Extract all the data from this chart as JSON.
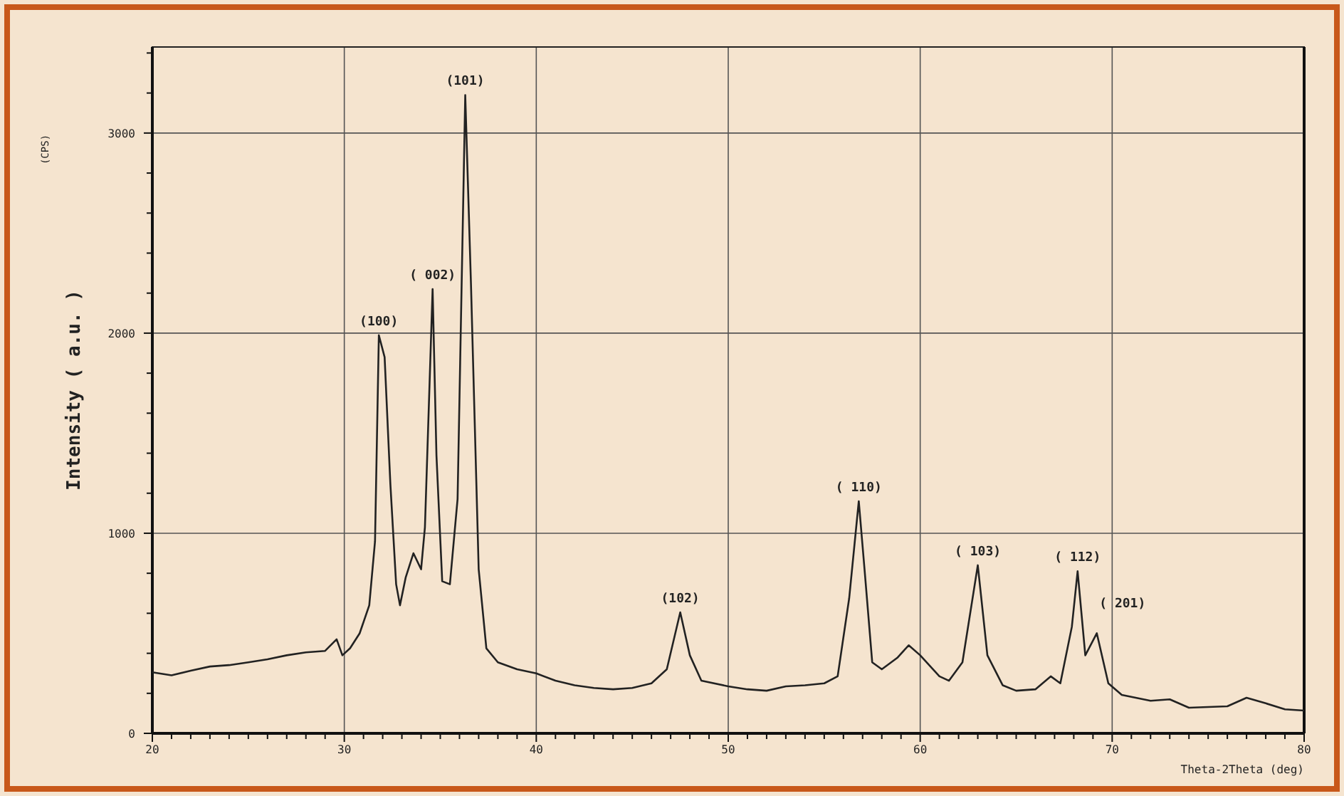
{
  "chart_data": {
    "type": "line",
    "xlabel": "Theta-2Theta (deg)",
    "ylabel": "Intensity ( a.u. )",
    "x": [
      20,
      21,
      22,
      23,
      24,
      25,
      26,
      27,
      28,
      29,
      29.6,
      29.9,
      30.3,
      30.8,
      31.3,
      31.6,
      31.8,
      32.1,
      32.4,
      32.7,
      32.9,
      33.2,
      33.6,
      34.0,
      34.2,
      34.6,
      34.8,
      35.1,
      35.5,
      35.9,
      36.3,
      36.6,
      37.0,
      37.4,
      38,
      39,
      40,
      41,
      42,
      43,
      44,
      45,
      46,
      46.8,
      47.5,
      48.0,
      48.6,
      50,
      51,
      52,
      53,
      54,
      55,
      55.7,
      56.3,
      56.8,
      57.1,
      57.5,
      58,
      58.8,
      59.4,
      60,
      61,
      61.5,
      62.2,
      63.0,
      63.5,
      64.3,
      65,
      66,
      66.8,
      67.3,
      67.9,
      68.2,
      68.6,
      69.2,
      69.8,
      70.5,
      72,
      73,
      74,
      76,
      77,
      78,
      79,
      80
    ],
    "series": [
      {
        "color": "#222222",
        "values": [
          305,
          290,
          313,
          334,
          341,
          355,
          370,
          390,
          405,
          412,
          470,
          390,
          425,
          500,
          640,
          960,
          1990,
          1880,
          1245,
          745,
          640,
          780,
          900,
          820,
          1030,
          2220,
          1390,
          760,
          745,
          1170,
          3190,
          2240,
          820,
          425,
          355,
          320,
          300,
          263,
          240,
          227,
          220,
          227,
          250,
          320,
          605,
          390,
          263,
          235,
          220,
          213,
          235,
          240,
          250,
          285,
          675,
          1160,
          820,
          355,
          320,
          377,
          440,
          390,
          285,
          263,
          355,
          840,
          390,
          240,
          213,
          220,
          285,
          250,
          533,
          810,
          390,
          500,
          250,
          192,
          163,
          170,
          128,
          135,
          178,
          150,
          120,
          114
        ]
      }
    ],
    "xlim": [
      20,
      80
    ],
    "ylim": [
      0,
      3430
    ],
    "xticks": [
      20,
      {
        "value": 21,
        "label": null
      },
      {
        "value": 22,
        "label": null
      },
      {
        "value": 23,
        "label": null
      },
      {
        "value": 24,
        "label": null
      },
      {
        "value": 25,
        "label": null
      },
      {
        "value": 26,
        "label": null
      },
      {
        "value": 27,
        "label": null
      },
      {
        "value": 28,
        "label": null
      },
      {
        "value": 29,
        "label": null
      },
      30,
      {
        "value": 31,
        "label": null
      },
      {
        "value": 32,
        "label": null
      },
      {
        "value": 33,
        "label": null
      },
      {
        "value": 34,
        "label": null
      },
      {
        "value": 35,
        "label": null
      },
      {
        "value": 36,
        "label": null
      },
      {
        "value": 37,
        "label": null
      },
      {
        "value": 38,
        "label": null
      },
      {
        "value": 39,
        "label": null
      },
      40,
      {
        "value": 41,
        "label": null
      },
      {
        "value": 42,
        "label": null
      },
      {
        "value": 43,
        "label": null
      },
      {
        "value": 44,
        "label": null
      },
      {
        "value": 45,
        "label": null
      },
      {
        "value": 46,
        "label": null
      },
      {
        "value": 47,
        "label": null
      },
      {
        "value": 48,
        "label": null
      },
      {
        "value": 49,
        "label": null
      },
      50,
      {
        "value": 51,
        "label": null
      },
      {
        "value": 52,
        "label": null
      },
      {
        "value": 53,
        "label": null
      },
      {
        "value": 54,
        "label": null
      },
      {
        "value": 55,
        "label": null
      },
      {
        "value": 56,
        "label": null
      },
      {
        "value": 57,
        "label": null
      },
      {
        "value": 58,
        "label": null
      },
      {
        "value": 59,
        "label": null
      },
      60,
      {
        "value": 61,
        "label": null
      },
      {
        "value": 62,
        "label": null
      },
      {
        "value": 63,
        "label": null
      },
      {
        "value": 64,
        "label": null
      },
      {
        "value": 65,
        "label": null
      },
      {
        "value": 66,
        "label": null
      },
      {
        "value": 67,
        "label": null
      },
      {
        "value": 68,
        "label": null
      },
      {
        "value": 69,
        "label": null
      },
      70,
      {
        "value": 71,
        "label": null
      },
      {
        "value": 72,
        "label": null
      },
      {
        "value": 73,
        "label": null
      },
      {
        "value": 74,
        "label": null
      },
      {
        "value": 75,
        "label": null
      },
      {
        "value": 76,
        "label": null
      },
      {
        "value": 77,
        "label": null
      },
      {
        "value": 78,
        "label": null
      },
      {
        "value": 79,
        "label": null
      },
      80
    ],
    "yticks": [
      0,
      {
        "value": 200,
        "label": null
      },
      {
        "value": 400,
        "label": null
      },
      {
        "value": 600,
        "label": null
      },
      {
        "value": 800,
        "label": null
      },
      1000,
      {
        "value": 1200,
        "label": null
      },
      {
        "value": 1400,
        "label": null
      },
      {
        "value": 1600,
        "label": null
      },
      {
        "value": 1800,
        "label": null
      },
      2000,
      {
        "value": 2200,
        "label": null
      },
      {
        "value": 2400,
        "label": null
      },
      {
        "value": 2600,
        "label": null
      },
      {
        "value": 2800,
        "label": null
      },
      3000,
      {
        "value": 3200,
        "label": null
      },
      {
        "value": 3400,
        "label": null
      }
    ],
    "grid": true,
    "marker": "none",
    "line_style": "solid",
    "annotations": [
      "(CPS)",
      {
        "text": "(100)",
        "x": 31.8,
        "y": 1990
      },
      {
        "text": "( 002)",
        "x": 34.6,
        "y": 2220
      },
      {
        "text": "(101)",
        "x": 36.3,
        "y": 3190
      },
      {
        "text": "(102)",
        "x": 47.5,
        "y": 605
      },
      {
        "text": "( 110)",
        "x": 56.8,
        "y": 1160
      },
      {
        "text": "( 103)",
        "x": 63.0,
        "y": 840
      },
      {
        "text": "( 112)",
        "x": 68.2,
        "y": 810
      },
      {
        "text": "( 201)",
        "x": 69.2,
        "y": 500
      }
    ]
  }
}
